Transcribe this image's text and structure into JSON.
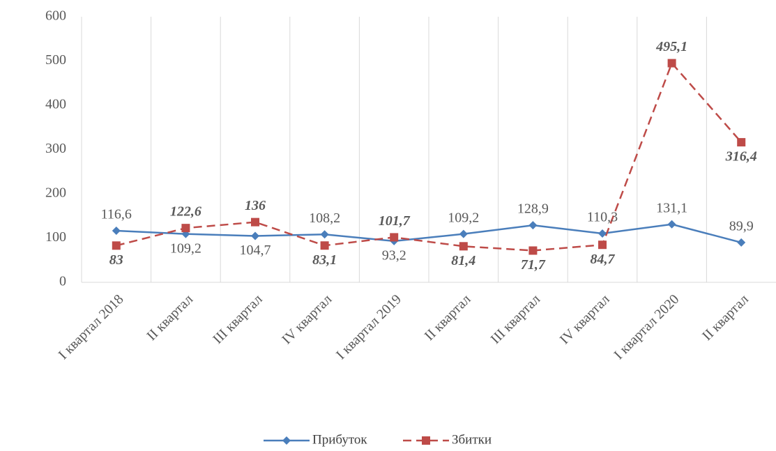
{
  "chart_data": {
    "type": "line",
    "categories": [
      "I квартал 2018",
      "II квартал",
      "III квартал",
      "IV квартал",
      "I квартал 2019",
      "II квартал",
      "III квартал",
      "IV квартал",
      "I квартал 2020",
      "II квартал"
    ],
    "series": [
      {
        "name": "Прибуток",
        "color": "#4a7ebb",
        "marker": "diamond",
        "values": [
          116.6,
          109.2,
          104.7,
          108.2,
          93.2,
          109.2,
          128.9,
          110.3,
          131.1,
          89.9
        ],
        "value_labels": [
          "116,6",
          "109,2",
          "104,7",
          "108,2",
          "93,2",
          "109,2",
          "128,9",
          "110,3",
          "131,1",
          "89,9"
        ]
      },
      {
        "name": "Збитки",
        "color": "#be4b48",
        "marker": "square",
        "dashed": true,
        "values": [
          83,
          122.6,
          136,
          83.1,
          101.7,
          81.4,
          71.7,
          84.7,
          495.1,
          316.4
        ],
        "value_labels": [
          "83",
          "122,6",
          "136",
          "83,1",
          "101,7",
          "81,4",
          "71,7",
          "84,7",
          "495,1",
          "316,4"
        ]
      }
    ],
    "ylim": [
      0,
      600
    ],
    "yticks": [
      0,
      100,
      200,
      300,
      400,
      500,
      600
    ],
    "grid": true,
    "legend": "bottom"
  }
}
